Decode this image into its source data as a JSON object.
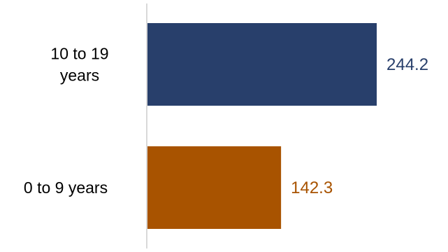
{
  "chart_data": {
    "type": "bar",
    "orientation": "horizontal",
    "categories": [
      "10 to 19 years",
      "0 to 9 years"
    ],
    "category_lines": [
      [
        "10 to 19",
        "years"
      ],
      [
        "0 to 9 years"
      ]
    ],
    "values": [
      244.2,
      142.3
    ],
    "value_labels": [
      "244.2",
      "142.3"
    ],
    "colors": [
      "#283f6b",
      "#a85300"
    ],
    "axis_color": "#d9d9d9",
    "category_label_color": "#000000",
    "xlim": [
      0,
      244.2
    ],
    "grid": false,
    "legend": "none"
  }
}
